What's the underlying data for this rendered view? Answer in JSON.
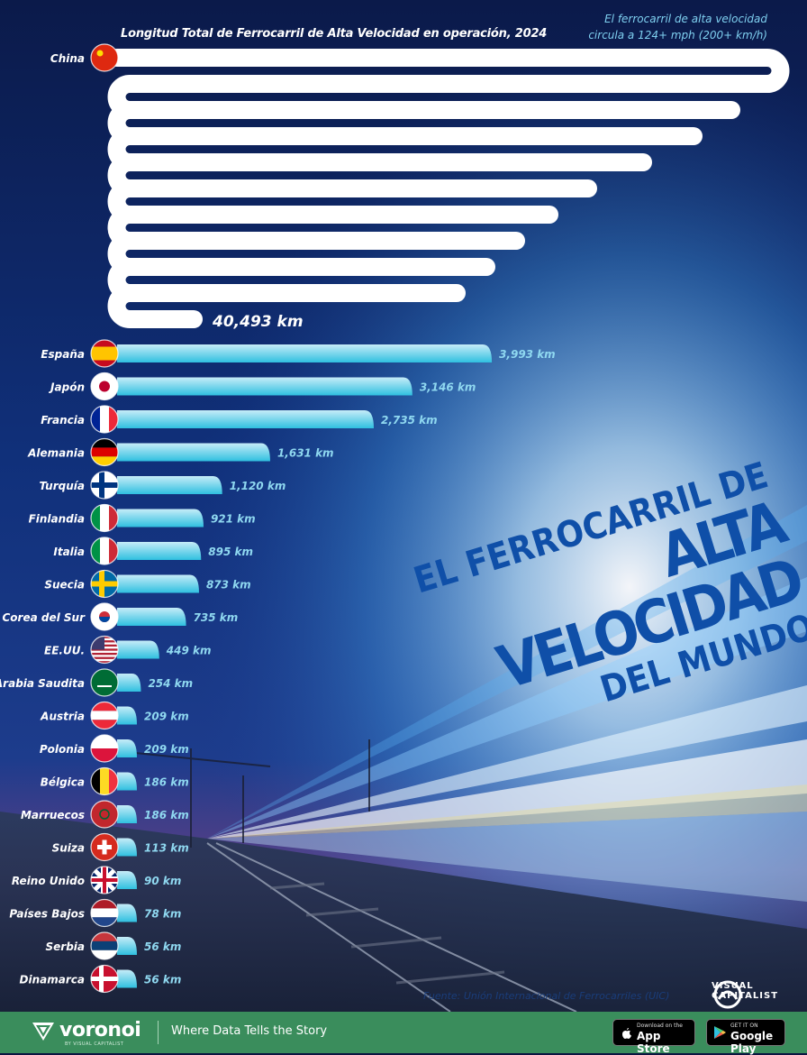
{
  "subtitle": "Longitud Total de Ferrocarril de Alta Velocidad en operación, 2024",
  "note_line1": "El ferrocarril de alta velocidad",
  "note_line2": "circula a 124+ mph (200+ km/h)",
  "headline": {
    "line1": "EL FERROCARRIL DE",
    "line2": "ALTA VELOCIDAD",
    "line3": "DEL MUNDO"
  },
  "source": "Fuente: Unión Internacional de Ferrocarriles (UIC)",
  "vc_brand_line1": "VISUAL",
  "vc_brand_line2": "CAPITALIST",
  "footer": {
    "brand": "voronoi",
    "brand_sub": "BY VISUAL CAPITALIST",
    "tagline": "Where Data Tells the Story",
    "appstore_small": "Download on the",
    "appstore_big": "App Store",
    "googleplay_small": "GET IT ON",
    "googleplay_big": "Google Play"
  },
  "colors": {
    "china_bar": "#ffffff",
    "bar_top": "#c6ecf8",
    "bar_bottom": "#2fc0e0",
    "value_label": "#8fd8f0",
    "footer_bg": "#3a8d5c",
    "headline": "#0f4fa8"
  },
  "chart_data": {
    "type": "bar",
    "orientation": "horizontal",
    "unit": "km",
    "title": "Longitud Total de Ferrocarril de Alta Velocidad en operación, 2024",
    "categories": [
      "China",
      "España",
      "Japón",
      "Francia",
      "Alemania",
      "Turquía",
      "Finlandia",
      "Italia",
      "Suecia",
      "Corea del Sur",
      "EE.UU.",
      "Arabia Saudita",
      "Austria",
      "Polonia",
      "Bélgica",
      "Marruecos",
      "Suiza",
      "Reino Unido",
      "Países Bajos",
      "Serbia",
      "Dinamarca"
    ],
    "values": [
      40493,
      3993,
      3146,
      2735,
      1631,
      1120,
      921,
      895,
      873,
      735,
      449,
      254,
      209,
      209,
      186,
      186,
      113,
      90,
      78,
      56,
      56
    ],
    "value_labels": [
      "40,493 km",
      "3,993 km",
      "3,146 km",
      "2,735 km",
      "1,631 km",
      "1,120 km",
      "921 km",
      "895 km",
      "873 km",
      "735 km",
      "449 km",
      "254 km",
      "209 km",
      "209 km",
      "186 km",
      "186 km",
      "113 km",
      "90 km",
      "78 km",
      "56 km",
      "56 km"
    ],
    "legend": "none",
    "grid": false
  }
}
